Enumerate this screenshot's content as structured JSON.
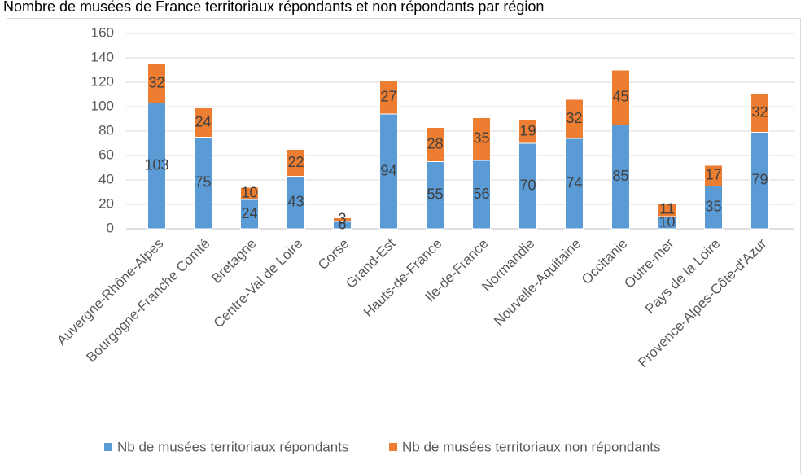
{
  "chart_data": {
    "type": "stacked_bar",
    "title": "Nombre de musées de France territoriaux répondants et non répondants par région",
    "categories": [
      "Auvergne-Rhône-Alpes",
      "Bourgogne-Franche Comté",
      "Bretagne",
      "Centre-Val de Loire",
      "Corse",
      "Grand-Est",
      "Hauts-de-France",
      "Ile-de-France",
      "Normandie",
      "Nouvelle-Aquitaine",
      "Occitanie",
      "Outre-mer",
      "Pays de la Loire",
      "Provence-Alpes-Côte-d'Azur"
    ],
    "series": [
      {
        "name": "Nb de musées territoriaux répondants",
        "color": "#5b9bd5",
        "values": [
          103,
          75,
          24,
          43,
          6,
          94,
          55,
          56,
          70,
          74,
          85,
          10,
          35,
          79
        ]
      },
      {
        "name": "Nb de musées territoriaux non répondants",
        "color": "#ed7d31",
        "values": [
          32,
          24,
          10,
          22,
          3,
          27,
          28,
          35,
          19,
          32,
          45,
          11,
          17,
          32
        ]
      }
    ],
    "ylim": [
      0,
      160
    ],
    "yticks": [
      0,
      20,
      40,
      60,
      80,
      100,
      120,
      140,
      160
    ],
    "grid": true,
    "legend": "bottom"
  }
}
